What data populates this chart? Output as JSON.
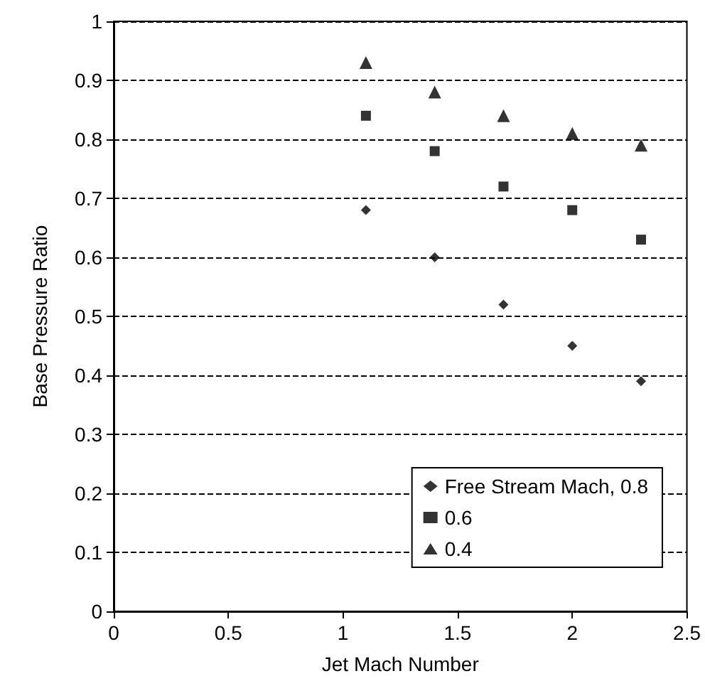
{
  "chart_data": {
    "type": "scatter",
    "xlabel": "Jet Mach Number",
    "ylabel": "Base Pressure Ratio",
    "x": [
      1.1,
      1.4,
      1.7,
      2.0,
      2.3
    ],
    "series": [
      {
        "name": "Free Stream Mach, 0.8",
        "color": "#000000",
        "marker": "diamond",
        "values": [
          0.68,
          0.6,
          0.52,
          0.45,
          0.39
        ]
      },
      {
        "name": "0.6",
        "color": "#000000",
        "marker": "square",
        "values": [
          0.84,
          0.78,
          0.72,
          0.68,
          0.63
        ]
      },
      {
        "name": "0.4",
        "color": "#000000",
        "marker": "triangle",
        "values": [
          0.93,
          0.88,
          0.84,
          0.81,
          0.79
        ]
      }
    ],
    "xlim": [
      0,
      2.5
    ],
    "xticks": [
      0,
      0.5,
      1,
      1.5,
      2,
      2.5
    ],
    "ylim": [
      0,
      1
    ],
    "yticks": [
      0,
      0.1,
      0.2,
      0.3,
      0.4,
      0.5,
      0.6,
      0.7,
      0.8,
      0.9,
      1
    ],
    "grid": "y",
    "legend": "bottom right"
  }
}
